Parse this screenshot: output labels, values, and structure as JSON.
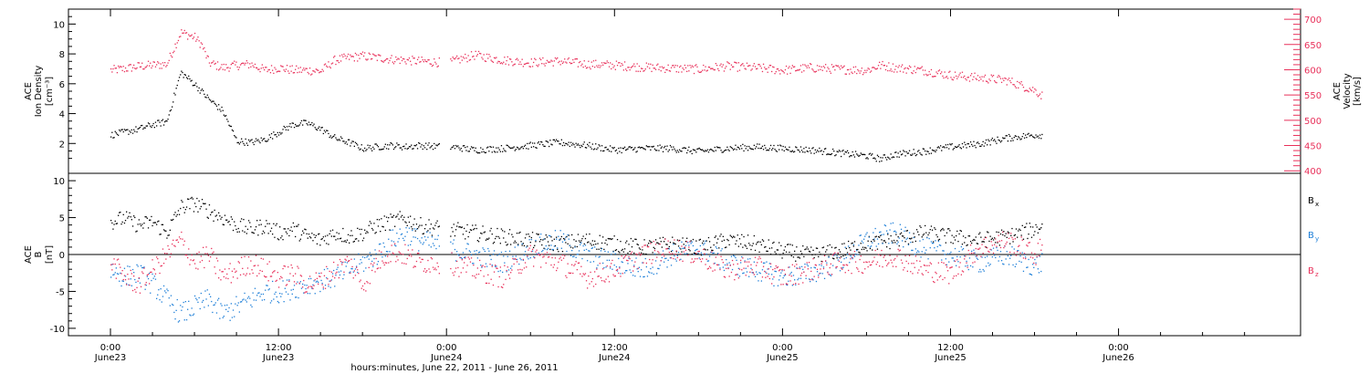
{
  "chart_data": [
    {
      "type": "scatter",
      "panel": "top",
      "ylabel_lines": [
        "ACE",
        "Ion Density",
        "[cm⁻³]"
      ],
      "ylim": [
        0,
        11
      ],
      "yticks": [
        2,
        4,
        6,
        8,
        10
      ],
      "y2label_lines": [
        "ACE",
        "Velocity",
        "[km/s]"
      ],
      "y2lim": [
        395,
        720
      ],
      "y2ticks": [
        400,
        450,
        500,
        550,
        600,
        650,
        700
      ],
      "series": [
        {
          "axis": "left",
          "color": "#000000",
          "x": [
            0,
            1,
            2,
            3,
            4,
            5,
            6,
            6.5,
            7,
            8,
            9,
            10,
            11,
            12,
            13,
            14,
            15,
            16,
            17,
            18,
            19,
            20,
            21,
            22,
            23.8,
            24.5,
            26,
            28,
            30,
            32,
            34,
            36,
            38,
            40,
            42,
            44,
            46,
            48,
            50,
            52,
            54,
            55,
            56,
            58,
            60,
            62,
            64,
            66,
            66.5
          ],
          "values": [
            2.6,
            2.8,
            3.0,
            3.3,
            3.5,
            6.8,
            6.0,
            5.5,
            5.0,
            4.2,
            2.2,
            2.1,
            2.3,
            2.8,
            3.3,
            3.4,
            3.0,
            2.4,
            2.1,
            1.7,
            1.8,
            1.9,
            1.8,
            1.9,
            1.8,
            1.8,
            1.6,
            1.7,
            1.9,
            2.1,
            1.9,
            1.6,
            1.7,
            1.7,
            1.5,
            1.7,
            1.8,
            1.7,
            1.6,
            1.4,
            1.2,
            1.0,
            1.3,
            1.5,
            1.8,
            2.0,
            2.4,
            2.6,
            2.6
          ]
        },
        {
          "axis": "right",
          "color": "#e8305a",
          "x": [
            0,
            1,
            2,
            3,
            4,
            5,
            6,
            6.5,
            7,
            8,
            9,
            10,
            11,
            12,
            13,
            14,
            15,
            16,
            17,
            18,
            19,
            20,
            21,
            22,
            23.8,
            24.5,
            26,
            28,
            30,
            32,
            34,
            36,
            38,
            40,
            42,
            44,
            46,
            48,
            50,
            52,
            54,
            55,
            56,
            58,
            60,
            62,
            64,
            66,
            66.5
          ],
          "values": [
            600,
            603,
            608,
            610,
            612,
            675,
            665,
            650,
            615,
            605,
            610,
            612,
            600,
            605,
            600,
            600,
            598,
            620,
            625,
            628,
            625,
            622,
            620,
            618,
            615,
            618,
            630,
            620,
            615,
            618,
            612,
            610,
            606,
            604,
            602,
            608,
            605,
            600,
            605,
            602,
            600,
            610,
            605,
            600,
            590,
            585,
            580,
            560,
            550
          ]
        }
      ]
    },
    {
      "type": "scatter",
      "panel": "bottom",
      "ylabel_lines": [
        "ACE",
        "B",
        "[nT]"
      ],
      "ylim": [
        -11,
        11
      ],
      "yticks": [
        -10,
        -5,
        0,
        5,
        10
      ],
      "series": [
        {
          "name": "B",
          "name_sub": "x",
          "color": "#000000",
          "x": [
            0,
            1,
            2,
            3,
            4,
            5,
            6,
            7,
            8,
            9,
            10,
            11,
            12,
            13,
            14,
            15,
            16,
            17,
            18,
            19,
            20,
            21,
            22,
            24,
            26,
            28,
            30,
            32,
            34,
            36,
            38,
            40,
            42,
            44,
            46,
            48,
            50,
            52,
            54,
            56,
            58,
            60,
            62,
            64,
            66,
            66.5
          ],
          "values": [
            4.5,
            5.0,
            4.0,
            4.5,
            3.0,
            6.5,
            7.0,
            6.0,
            5.0,
            4.0,
            3.5,
            4.0,
            3.0,
            3.5,
            2.5,
            2.0,
            3.0,
            2.5,
            3.0,
            4.0,
            4.5,
            5.0,
            4.0,
            3.5,
            3.0,
            2.5,
            2.0,
            1.5,
            2.0,
            1.5,
            1.0,
            1.5,
            1.0,
            2.0,
            1.5,
            0.5,
            0.0,
            0.5,
            1.5,
            2.0,
            3.0,
            2.5,
            2.0,
            2.5,
            3.5,
            4.0
          ]
        },
        {
          "name": "B",
          "name_sub": "y",
          "color": "#1e7fd8",
          "x": [
            0,
            1,
            2,
            3,
            4,
            5,
            6,
            7,
            8,
            9,
            10,
            11,
            12,
            13,
            14,
            15,
            16,
            17,
            18,
            19,
            20,
            21,
            22,
            24,
            26,
            28,
            30,
            32,
            34,
            36,
            38,
            40,
            42,
            44,
            46,
            48,
            50,
            52,
            54,
            56,
            58,
            60,
            62,
            64,
            66,
            66.5
          ],
          "values": [
            -2.0,
            -3.0,
            -2.5,
            -4.0,
            -6.0,
            -8.0,
            -7.0,
            -6.0,
            -8.0,
            -7.0,
            -6.0,
            -5.0,
            -5.0,
            -4.5,
            -4.0,
            -3.5,
            -3.0,
            -2.0,
            -1.0,
            0.0,
            2.0,
            3.0,
            2.0,
            1.0,
            0.0,
            -1.0,
            1.0,
            2.0,
            0.0,
            -1.0,
            -2.0,
            0.0,
            1.0,
            -1.0,
            -2.0,
            -3.0,
            -2.5,
            -1.0,
            2.0,
            3.0,
            1.0,
            0.0,
            -1.0,
            0.0,
            -1.5,
            -1.0
          ]
        },
        {
          "name": "B",
          "name_sub": "z",
          "color": "#e8305a",
          "x": [
            0,
            1,
            2,
            3,
            4,
            5,
            6,
            7,
            8,
            9,
            10,
            11,
            12,
            13,
            14,
            15,
            16,
            17,
            18,
            19,
            20,
            21,
            22,
            24,
            26,
            28,
            30,
            32,
            34,
            36,
            38,
            40,
            42,
            44,
            46,
            48,
            50,
            52,
            54,
            56,
            58,
            60,
            62,
            64,
            66,
            66.5
          ],
          "values": [
            -1.0,
            -3.0,
            -4.0,
            -2.0,
            0.0,
            2.0,
            -1.0,
            0.0,
            -3.0,
            -2.0,
            -1.0,
            -2.0,
            -3.0,
            -2.5,
            -4.0,
            -3.5,
            -2.0,
            -1.0,
            -4.0,
            -1.0,
            0.5,
            0.0,
            -1.0,
            -1.0,
            -2.0,
            -3.0,
            0.0,
            -1.0,
            -3.0,
            -2.0,
            0.0,
            1.0,
            0.0,
            -2.0,
            -1.5,
            -3.0,
            -2.0,
            -1.0,
            -1.0,
            0.0,
            -2.0,
            -2.5,
            1.0,
            2.0,
            0.0,
            1.0
          ]
        }
      ]
    }
  ],
  "x_axis": {
    "xlim": [
      -3,
      85
    ],
    "ticks": [
      {
        "x": 0,
        "line1": "0:00",
        "line2": "June23"
      },
      {
        "x": 12,
        "line1": "12:00",
        "line2": "June23"
      },
      {
        "x": 24,
        "line1": "0:00",
        "line2": "June24"
      },
      {
        "x": 36,
        "line1": "12:00",
        "line2": "June24"
      },
      {
        "x": 48,
        "line1": "0:00",
        "line2": "June25"
      },
      {
        "x": 60,
        "line1": "12:00",
        "line2": "June25"
      },
      {
        "x": 72,
        "line1": "0:00",
        "line2": "June26"
      }
    ],
    "xlabel": "hours:minutes, June 22, 2011 - June 26, 2011"
  },
  "legend_colors": {
    "density": "#000000",
    "velocity": "#e8305a",
    "bx": "#000000",
    "by": "#1e7fd8",
    "bz": "#e8305a"
  }
}
